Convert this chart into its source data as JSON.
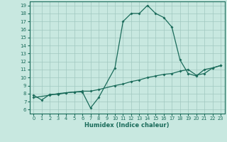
{
  "xlabel": "Humidex (Indice chaleur)",
  "xlim": [
    -0.5,
    23.5
  ],
  "ylim": [
    5.5,
    19.5
  ],
  "xticks": [
    0,
    1,
    2,
    3,
    4,
    5,
    6,
    7,
    8,
    9,
    10,
    11,
    12,
    13,
    14,
    15,
    16,
    17,
    18,
    19,
    20,
    21,
    22,
    23
  ],
  "yticks": [
    6,
    7,
    8,
    9,
    10,
    11,
    12,
    13,
    14,
    15,
    16,
    17,
    18,
    19
  ],
  "bg_color": "#c8e8e0",
  "grid_color": "#a0c8c0",
  "line_color": "#1a6b5a",
  "line1_x": [
    0,
    1,
    2,
    3,
    4,
    5,
    6,
    7,
    8,
    10,
    11,
    12,
    13,
    14,
    15,
    16,
    17,
    18,
    19,
    20,
    21,
    22,
    23
  ],
  "line1_y": [
    7.8,
    7.2,
    7.9,
    7.9,
    8.1,
    8.2,
    8.2,
    6.2,
    7.5,
    11.2,
    17.0,
    18.0,
    18.0,
    19.0,
    18.0,
    17.5,
    16.3,
    12.2,
    10.5,
    10.2,
    11.0,
    11.2,
    11.5
  ],
  "line2_x": [
    0,
    2,
    3,
    4,
    5,
    6,
    7,
    8,
    10,
    11,
    12,
    13,
    14,
    15,
    16,
    17,
    18,
    19,
    20,
    21,
    22,
    23
  ],
  "line2_y": [
    7.5,
    7.8,
    8.0,
    8.1,
    8.2,
    8.3,
    8.3,
    8.5,
    9.0,
    9.2,
    9.5,
    9.7,
    10.0,
    10.2,
    10.4,
    10.5,
    10.8,
    11.0,
    10.3,
    10.5,
    11.2,
    11.5
  ]
}
